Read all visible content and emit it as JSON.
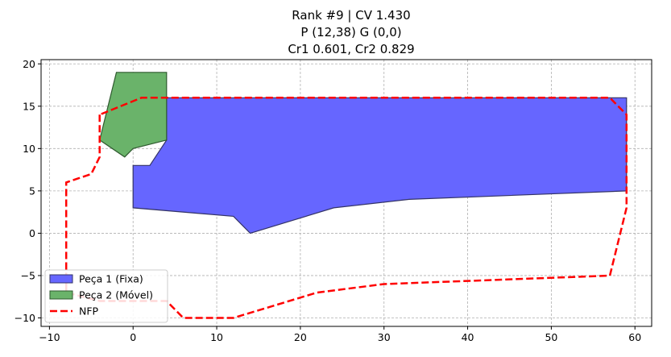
{
  "chart_data": {
    "type": "area",
    "title_lines": [
      "Rank #9 | CV 1.430",
      "P (12,38) G (0,0)",
      "Cr1 0.601, Cr2 0.829"
    ],
    "xlim": [
      -11,
      62
    ],
    "ylim": [
      -11,
      20.5
    ],
    "x_ticks": [
      -10,
      0,
      10,
      20,
      30,
      40,
      50,
      60
    ],
    "y_ticks": [
      -10,
      -5,
      0,
      5,
      10,
      15,
      20
    ],
    "grid": true,
    "legend_position": "lower-left",
    "series": [
      {
        "name": "Peça 1 (Fixa)",
        "kind": "polygon",
        "color": "#6666ff",
        "edge": "#333366",
        "points": [
          [
            0,
            3
          ],
          [
            0,
            8
          ],
          [
            2,
            8
          ],
          [
            4,
            11
          ],
          [
            4,
            16
          ],
          [
            59,
            16
          ],
          [
            59,
            5
          ],
          [
            33,
            4
          ],
          [
            24,
            3
          ],
          [
            14,
            0
          ],
          [
            12,
            2
          ]
        ]
      },
      {
        "name": "Peça 2 (Móvel)",
        "kind": "polygon",
        "color": "#6ab36a",
        "edge": "#2f5a2f",
        "points": [
          [
            -2,
            19
          ],
          [
            4,
            19
          ],
          [
            4,
            11
          ],
          [
            0,
            10
          ],
          [
            -1,
            9
          ],
          [
            -4,
            11
          ]
        ]
      },
      {
        "name": "NFP",
        "kind": "line",
        "color": "#ff0000",
        "style": "dashed",
        "points": [
          [
            -4,
            14
          ],
          [
            -4,
            9
          ],
          [
            -5,
            7
          ],
          [
            -8,
            6
          ],
          [
            -8,
            -7
          ],
          [
            -4,
            -8
          ],
          [
            4,
            -8
          ],
          [
            6,
            -10
          ],
          [
            12,
            -10
          ],
          [
            22,
            -7
          ],
          [
            30,
            -6
          ],
          [
            57,
            -5
          ],
          [
            59,
            3
          ],
          [
            59,
            14
          ],
          [
            57,
            16
          ],
          [
            1,
            16
          ],
          [
            -4,
            14
          ]
        ]
      }
    ]
  }
}
